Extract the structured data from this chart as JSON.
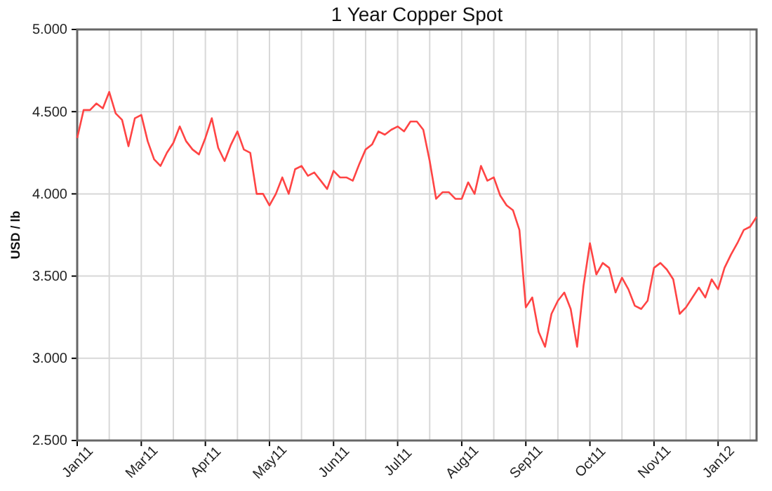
{
  "chart_data": {
    "type": "line",
    "title": "1 Year Copper Spot",
    "ylabel": "USD / lb",
    "categories": [
      "Jan11",
      null,
      null,
      null,
      null,
      null,
      null,
      null,
      null,
      null,
      "Mar11",
      null,
      null,
      null,
      null,
      null,
      null,
      null,
      null,
      null,
      "Apr11",
      null,
      null,
      null,
      null,
      null,
      null,
      null,
      null,
      null,
      "May11",
      null,
      null,
      null,
      null,
      null,
      null,
      null,
      null,
      null,
      "Jun11",
      null,
      null,
      null,
      null,
      null,
      null,
      null,
      null,
      null,
      "Jul11",
      null,
      null,
      null,
      null,
      null,
      null,
      null,
      null,
      null,
      "Aug11",
      null,
      null,
      null,
      null,
      null,
      null,
      null,
      null,
      null,
      "Sep11",
      null,
      null,
      null,
      null,
      null,
      null,
      null,
      null,
      null,
      "Oct11",
      null,
      null,
      null,
      null,
      null,
      null,
      null,
      null,
      null,
      "Nov11",
      null,
      null,
      null,
      null,
      null,
      null,
      null,
      null,
      null,
      "Jan12",
      null,
      null,
      null,
      null,
      null,
      null
    ],
    "series": [
      {
        "color": "#ff4444",
        "values": [
          4.34,
          4.51,
          4.51,
          4.55,
          4.52,
          4.62,
          4.49,
          4.45,
          4.29,
          4.46,
          4.48,
          4.32,
          4.21,
          4.17,
          4.25,
          4.31,
          4.41,
          4.32,
          4.27,
          4.24,
          4.34,
          4.46,
          4.28,
          4.2,
          4.3,
          4.38,
          4.27,
          4.25,
          4.0,
          4.0,
          3.93,
          4.0,
          4.1,
          4.0,
          4.15,
          4.17,
          4.11,
          4.13,
          4.08,
          4.03,
          4.14,
          4.1,
          4.1,
          4.08,
          4.18,
          4.27,
          4.3,
          4.38,
          4.36,
          4.39,
          4.41,
          4.38,
          4.44,
          4.44,
          4.39,
          4.2,
          3.97,
          4.01,
          4.01,
          3.97,
          3.97,
          4.07,
          4.0,
          4.17,
          4.08,
          4.1,
          3.99,
          3.93,
          3.9,
          3.78,
          3.31,
          3.37,
          3.16,
          3.07,
          3.27,
          3.35,
          3.4,
          3.3,
          3.07,
          3.44,
          3.7,
          3.51,
          3.58,
          3.55,
          3.4,
          3.49,
          3.42,
          3.32,
          3.3,
          3.35,
          3.55,
          3.58,
          3.54,
          3.48,
          3.27,
          3.31,
          3.37,
          3.43,
          3.37,
          3.48,
          3.42,
          3.55,
          3.63,
          3.7,
          3.78,
          3.8,
          3.86
        ]
      }
    ],
    "ylim": [
      2.5,
      5
    ],
    "yticks": [
      {
        "value": 2.5,
        "label": "2.500"
      },
      {
        "value": 3,
        "label": "3.000"
      },
      {
        "value": 3.5,
        "label": "3.500"
      },
      {
        "value": 4,
        "label": "4.000"
      },
      {
        "value": 4.5,
        "label": "4.500"
      },
      {
        "value": 5,
        "label": "5.000"
      }
    ],
    "grid": true,
    "marker": "none",
    "line_style": "solid"
  }
}
